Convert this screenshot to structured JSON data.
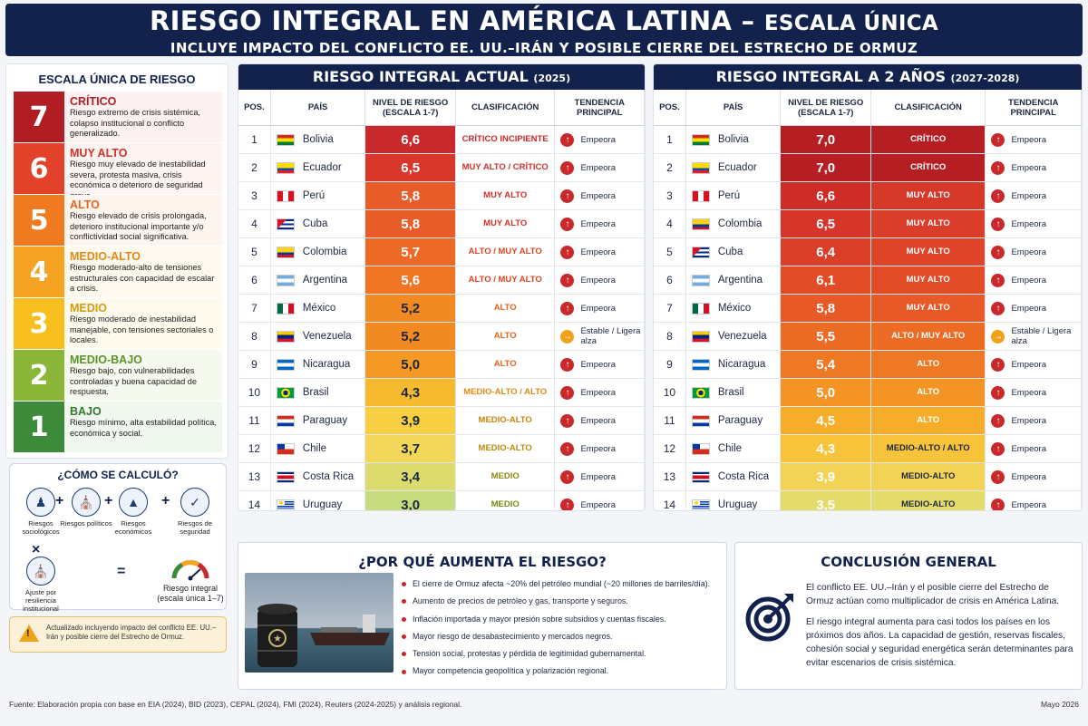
{
  "header": {
    "title_main": "RIESGO INTEGRAL EN AMÉRICA LATINA – ",
    "title_suffix": "ESCALA ÚNICA",
    "subtitle": "INCLUYE IMPACTO DEL CONFLICTO EE. UU.–IRÁN Y POSIBLE CIERRE DEL ESTRECHO DE ORMUZ"
  },
  "scale": {
    "title": "ESCALA ÚNICA DE RIESGO",
    "levels": [
      {
        "num": "7",
        "label": "CRÍTICO",
        "desc": "Riesgo extremo de crisis sistémica, colapso institucional o conflicto generalizado.",
        "color": "#b01e23",
        "text_color": "#b01e23",
        "bg": "#fdf1f1"
      },
      {
        "num": "6",
        "label": "MUY ALTO",
        "desc": "Riesgo muy elevado de inestabilidad severa, protesta masiva, crisis económica o deterioro de seguridad grave.",
        "color": "#e2422a",
        "text_color": "#d1322a",
        "bg": "#fdf3f0"
      },
      {
        "num": "5",
        "label": "ALTO",
        "desc": "Riesgo elevado de crisis prolongada, deterioro institucional importante y/o conflictividad social significativa.",
        "color": "#ef7a20",
        "text_color": "#e2661e",
        "bg": "#fef6ee"
      },
      {
        "num": "4",
        "label": "MEDIO-ALTO",
        "desc": "Riesgo moderado-alto de tensiones estructurales con capacidad de escalar a crisis.",
        "color": "#f4a323",
        "text_color": "#e08a18",
        "bg": "#fef9ef"
      },
      {
        "num": "3",
        "label": "MEDIO",
        "desc": "Riesgo moderado de inestabilidad manejable, con tensiones sectoriales o locales.",
        "color": "#f6bf1d",
        "text_color": "#d49b0b",
        "bg": "#fefbee"
      },
      {
        "num": "2",
        "label": "MEDIO-BAJO",
        "desc": "Riesgo bajo, con vulnerabilidades controladas y buena capacidad de respuesta.",
        "color": "#8ab63a",
        "text_color": "#5f922c",
        "bg": "#f6faee"
      },
      {
        "num": "1",
        "label": "BAJO",
        "desc": "Riesgo mínimo, alta estabilidad política, económica y social.",
        "color": "#3d8b3a",
        "text_color": "#2f7a2e",
        "bg": "#f0f7ef"
      }
    ]
  },
  "calc": {
    "title": "¿CÓMO SE CALCULÓ?",
    "items": [
      "Riesgos sociológicos",
      "Riesgos políticos",
      "Riesgos económicos",
      "Riesgos de seguridad"
    ],
    "adjust": "Ajuste por resiliencia institucional",
    "result": "Riesgo integral (escala única 1–7)",
    "plus": "+",
    "times": "×",
    "equals": "="
  },
  "note": "Actualizado incluyendo impacto del conflicto EE. UU.–Irán y posible cierre del Estrecho de Ormuz.",
  "table_headers": {
    "pos": "POS.",
    "country": "PAÍS",
    "level": "NIVEL DE RIESGO (ESCALA 1-7)",
    "class": "CLASIFICACIÓN",
    "trend": "TENDENCIA PRINCIPAL"
  },
  "current": {
    "title": "RIESGO INTEGRAL ACTUAL",
    "year": "(2025)",
    "rows": [
      {
        "pos": "1",
        "country": "Bolivia",
        "value": "6,6",
        "class": "CRÍTICO INCIPIENTE",
        "trend": "Empeora",
        "color": "#c9292a",
        "class_color": "#c9292a",
        "tcolor": "#c9292a",
        "flag": "bo"
      },
      {
        "pos": "2",
        "country": "Ecuador",
        "value": "6,5",
        "class": "MUY ALTO / CRÍTICO",
        "trend": "Empeora",
        "color": "#d8372a",
        "class_color": "#d1322a",
        "tcolor": "#c9292a",
        "flag": "ec"
      },
      {
        "pos": "3",
        "country": "Perú",
        "value": "5,8",
        "class": "MUY ALTO",
        "trend": "Empeora",
        "color": "#e75c28",
        "class_color": "#d1322a",
        "tcolor": "#c9292a",
        "flag": "pe"
      },
      {
        "pos": "4",
        "country": "Cuba",
        "value": "5,8",
        "class": "MUY ALTO",
        "trend": "Empeora",
        "color": "#e75c28",
        "class_color": "#d1322a",
        "tcolor": "#c9292a",
        "flag": "cu"
      },
      {
        "pos": "5",
        "country": "Colombia",
        "value": "5,7",
        "class": "ALTO / MUY ALTO",
        "trend": "Empeora",
        "color": "#ec6a26",
        "class_color": "#e0451f",
        "tcolor": "#c9292a",
        "flag": "co"
      },
      {
        "pos": "6",
        "country": "Argentina",
        "value": "5,6",
        "class": "ALTO / MUY ALTO",
        "trend": "Empeora",
        "color": "#ef7524",
        "class_color": "#e0451f",
        "tcolor": "#c9292a",
        "flag": "ar"
      },
      {
        "pos": "7",
        "country": "México",
        "value": "5,2",
        "class": "ALTO",
        "trend": "Empeora",
        "color": "#f28a23",
        "class_color": "#e2661e",
        "tcolor": "#c9292a",
        "flag": "mx"
      },
      {
        "pos": "8",
        "country": "Venezuela",
        "value": "5,2",
        "class": "ALTO",
        "trend": "Estable / Ligera alza",
        "color": "#f28a23",
        "class_color": "#e2661e",
        "tcolor": "#f0a21a",
        "flag": "ve"
      },
      {
        "pos": "9",
        "country": "Nicaragua",
        "value": "5,0",
        "class": "ALTO",
        "trend": "Empeora",
        "color": "#f49a24",
        "class_color": "#e2661e",
        "tcolor": "#c9292a",
        "flag": "ni"
      },
      {
        "pos": "10",
        "country": "Brasil",
        "value": "4,3",
        "class": "MEDIO-ALTO / ALTO",
        "trend": "Empeora",
        "color": "#f6ba2e",
        "class_color": "#e08a18",
        "tcolor": "#c9292a",
        "flag": "br"
      },
      {
        "pos": "11",
        "country": "Paraguay",
        "value": "3,9",
        "class": "MEDIO-ALTO",
        "trend": "Empeora",
        "color": "#f6cf43",
        "class_color": "#c98410",
        "tcolor": "#c9292a",
        "flag": "py"
      },
      {
        "pos": "12",
        "country": "Chile",
        "value": "3,7",
        "class": "MEDIO-ALTO",
        "trend": "Empeora",
        "color": "#f1d659",
        "class_color": "#b98b0f",
        "tcolor": "#c9292a",
        "flag": "cl"
      },
      {
        "pos": "13",
        "country": "Costa Rica",
        "value": "3,4",
        "class": "MEDIO",
        "trend": "Empeora",
        "color": "#dcdc6e",
        "class_color": "#8c8a12",
        "tcolor": "#c9292a",
        "flag": "cr"
      },
      {
        "pos": "14",
        "country": "Uruguay",
        "value": "3,0",
        "class": "MEDIO",
        "trend": "Empeora",
        "color": "#c6dc7e",
        "class_color": "#7a8a14",
        "tcolor": "#c9292a",
        "flag": "uy"
      }
    ]
  },
  "future": {
    "title": "RIESGO INTEGRAL A 2 AÑOS",
    "year": "(2027-2028)",
    "rows": [
      {
        "pos": "1",
        "country": "Bolivia",
        "value": "7,0",
        "class": "CRÍTICO",
        "trend": "Empeora",
        "color": "#b51f24",
        "cell_bg": "#b51f24",
        "class_fg": "#ffffff",
        "tcolor": "#c9292a",
        "flag": "bo"
      },
      {
        "pos": "2",
        "country": "Ecuador",
        "value": "7,0",
        "class": "CRÍTICO",
        "trend": "Empeora",
        "color": "#b51f24",
        "cell_bg": "#b51f24",
        "class_fg": "#ffffff",
        "tcolor": "#c9292a",
        "flag": "ec"
      },
      {
        "pos": "3",
        "country": "Perú",
        "value": "6,6",
        "class": "MUY ALTO",
        "trend": "Empeora",
        "color": "#cd2c27",
        "cell_bg": "#d6382a",
        "class_fg": "#ffffff",
        "tcolor": "#c9292a",
        "flag": "pe"
      },
      {
        "pos": "4",
        "country": "Colombia",
        "value": "6,5",
        "class": "MUY ALTO",
        "trend": "Empeora",
        "color": "#d6352a",
        "cell_bg": "#da3d29",
        "class_fg": "#ffffff",
        "tcolor": "#c9292a",
        "flag": "co"
      },
      {
        "pos": "5",
        "country": "Cuba",
        "value": "6,4",
        "class": "MUY ALTO",
        "trend": "Empeora",
        "color": "#db3e29",
        "cell_bg": "#de4428",
        "class_fg": "#ffffff",
        "tcolor": "#c9292a",
        "flag": "cu"
      },
      {
        "pos": "6",
        "country": "Argentina",
        "value": "6,1",
        "class": "MUY ALTO",
        "trend": "Empeora",
        "color": "#e24b28",
        "cell_bg": "#e24b28",
        "class_fg": "#ffffff",
        "tcolor": "#c9292a",
        "flag": "ar"
      },
      {
        "pos": "7",
        "country": "México",
        "value": "5,8",
        "class": "MUY ALTO",
        "trend": "Empeora",
        "color": "#e75a27",
        "cell_bg": "#e75a27",
        "class_fg": "#ffffff",
        "tcolor": "#c9292a",
        "flag": "mx"
      },
      {
        "pos": "8",
        "country": "Venezuela",
        "value": "5,5",
        "class": "ALTO / MUY ALTO",
        "trend": "Estable / Ligera alza",
        "color": "#ec6b25",
        "cell_bg": "#ec6b25",
        "class_fg": "#ffffff",
        "tcolor": "#f0a21a",
        "flag": "ve"
      },
      {
        "pos": "9",
        "country": "Nicaragua",
        "value": "5,4",
        "class": "ALTO",
        "trend": "Empeora",
        "color": "#ef7824",
        "cell_bg": "#ef7824",
        "class_fg": "#ffffff",
        "tcolor": "#c9292a",
        "flag": "ni"
      },
      {
        "pos": "10",
        "country": "Brasil",
        "value": "5,0",
        "class": "ALTO",
        "trend": "Empeora",
        "color": "#f39424",
        "cell_bg": "#f39424",
        "class_fg": "#ffffff",
        "tcolor": "#c9292a",
        "flag": "br"
      },
      {
        "pos": "11",
        "country": "Paraguay",
        "value": "4,5",
        "class": "ALTO",
        "trend": "Empeora",
        "color": "#f5ad2a",
        "cell_bg": "#f5ad2a",
        "class_fg": "#ffffff",
        "tcolor": "#c9292a",
        "flag": "py"
      },
      {
        "pos": "12",
        "country": "Chile",
        "value": "4,3",
        "class": "MEDIO-ALTO / ALTO",
        "trend": "Empeora",
        "color": "#f6c33a",
        "cell_bg": "#f6c33a",
        "class_fg": "#1d2740",
        "tcolor": "#c9292a",
        "flag": "cl"
      },
      {
        "pos": "13",
        "country": "Costa Rica",
        "value": "3,9",
        "class": "MEDIO-ALTO",
        "trend": "Empeora",
        "color": "#f3d355",
        "cell_bg": "#f3d355",
        "class_fg": "#1d2740",
        "tcolor": "#c9292a",
        "flag": "cr"
      },
      {
        "pos": "14",
        "country": "Uruguay",
        "value": "3,5",
        "class": "MEDIO-ALTO",
        "trend": "Empeora",
        "color": "#e3dc6a",
        "cell_bg": "#e3dc6a",
        "class_fg": "#1d2740",
        "tcolor": "#c9292a",
        "flag": "uy"
      }
    ]
  },
  "why": {
    "title": "¿POR QUÉ AUMENTA EL RIESGO?",
    "items": [
      "El cierre de Ormuz afecta ~20% del petróleo mundial (~20 millones de barriles/día).",
      "Aumento de precios de petróleo y gas, transporte y seguros.",
      "Inflación importada y mayor presión sobre subsidios y cuentas fiscales.",
      "Mayor riesgo de desabastecimiento y mercados negros.",
      "Tensión social, protestas y pérdida de legitimidad gubernamental.",
      "Mayor competencia geopolítica y polarización regional."
    ]
  },
  "conclusion": {
    "title": "CONCLUSIÓN GENERAL",
    "p1": "El conflicto EE. UU.–Irán y el posible cierre del Estrecho de Ormuz actúan como multiplicador de crisis en América Latina.",
    "p2": "El riesgo integral aumenta para casi todos los países en los próximos dos años. La capacidad de gestión, reservas fiscales, cohesión social y seguridad energética serán determinantes para evitar escenarios de crisis sistémica."
  },
  "footer": {
    "source": "Fuente: Elaboración propia con base en EIA (2024), BID (2023), CEPAL (2024), FMI (2024), Reuters (2024-2025) y análisis regional.",
    "date": "Mayo 2026"
  }
}
